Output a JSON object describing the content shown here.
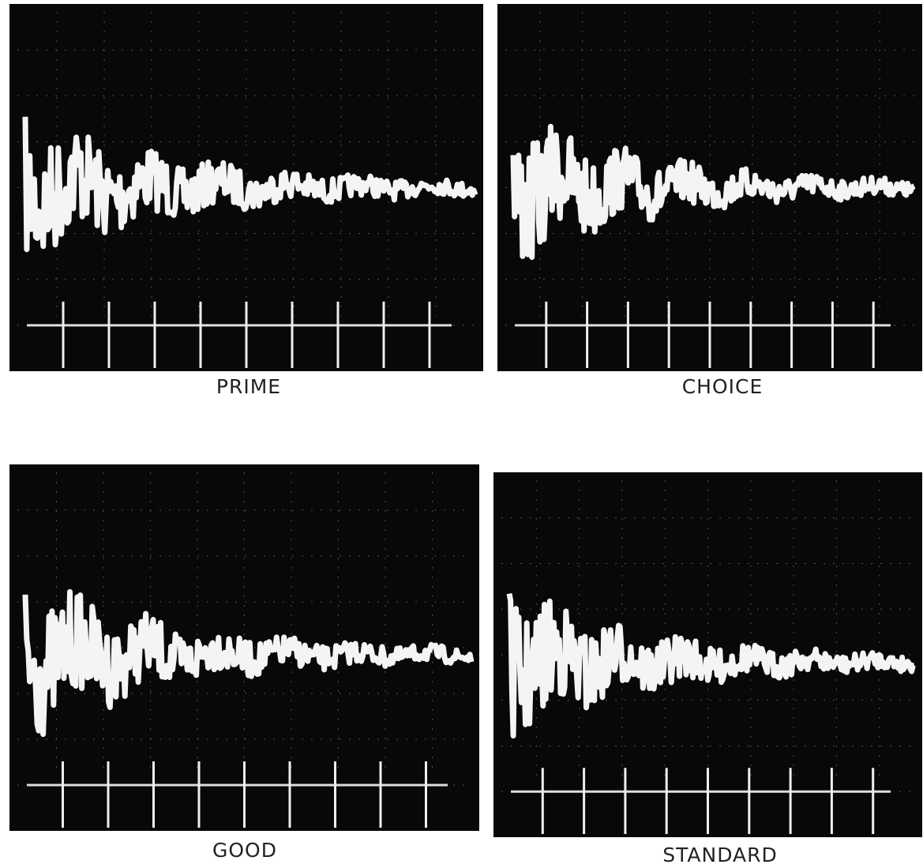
{
  "panels": [
    {
      "label": "PRIME"
    },
    {
      "label": "CHOICE"
    },
    {
      "label": "GOOD"
    },
    {
      "label": "STANDARD"
    }
  ]
}
